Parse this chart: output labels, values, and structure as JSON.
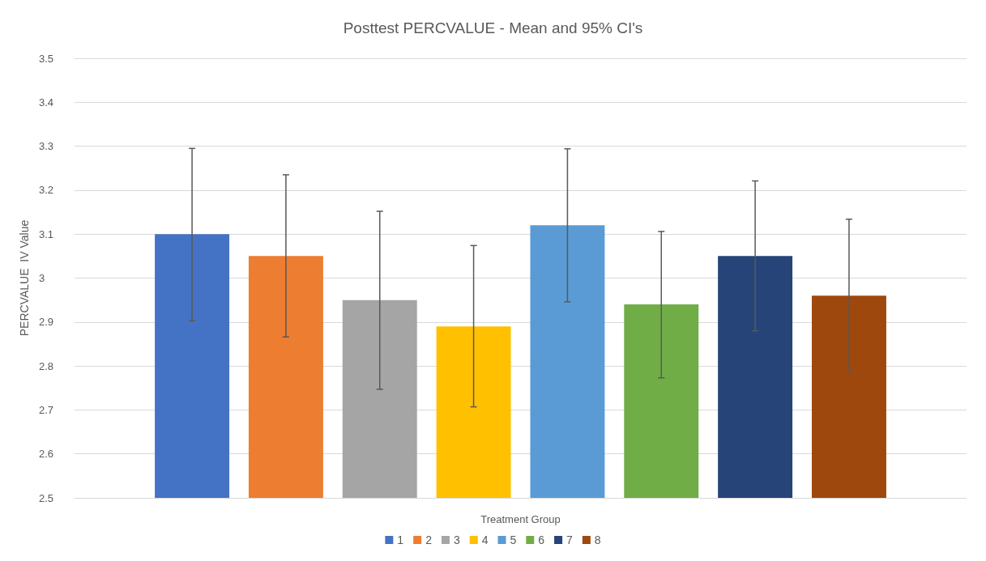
{
  "chart_data": {
    "type": "bar",
    "title": "Posttest PERCVALUE - Mean and 95% CI's",
    "xlabel": "Treatment Group",
    "ylabel": "PERCVALUE  IV Value",
    "categories": [
      null
    ],
    "series": [
      {
        "name": "1",
        "color": "#4472c4",
        "values": [
          3.1
        ],
        "errors": [
          [
            2.903,
            3.295
          ]
        ]
      },
      {
        "name": "2",
        "color": "#ed7d31",
        "values": [
          3.05
        ],
        "errors": [
          [
            2.866,
            3.235
          ]
        ]
      },
      {
        "name": "3",
        "color": "#a5a5a5",
        "values": [
          2.95
        ],
        "errors": [
          [
            2.747,
            3.152
          ]
        ]
      },
      {
        "name": "4",
        "color": "#ffc000",
        "values": [
          2.89
        ],
        "errors": [
          [
            2.707,
            3.074
          ]
        ]
      },
      {
        "name": "5",
        "color": "#5b9bd5",
        "values": [
          3.12
        ],
        "errors": [
          [
            2.946,
            3.294
          ]
        ]
      },
      {
        "name": "6",
        "color": "#70ad47",
        "values": [
          2.94
        ],
        "errors": [
          [
            2.773,
            3.106
          ]
        ]
      },
      {
        "name": "7",
        "color": "#264478",
        "values": [
          3.05
        ],
        "errors": [
          [
            2.88,
            3.221
          ]
        ]
      },
      {
        "name": "8",
        "color": "#9e480e",
        "values": [
          2.96
        ],
        "errors": [
          [
            2.787,
            3.134
          ]
        ]
      }
    ],
    "ylim": [
      2.5,
      3.5
    ],
    "yticks": [
      2.5,
      2.6,
      2.7,
      2.8,
      2.9,
      3,
      3.1,
      3.2,
      3.3,
      3.4,
      3.5
    ],
    "grid": "y",
    "legend": "bottom",
    "tick_labels": "y"
  }
}
